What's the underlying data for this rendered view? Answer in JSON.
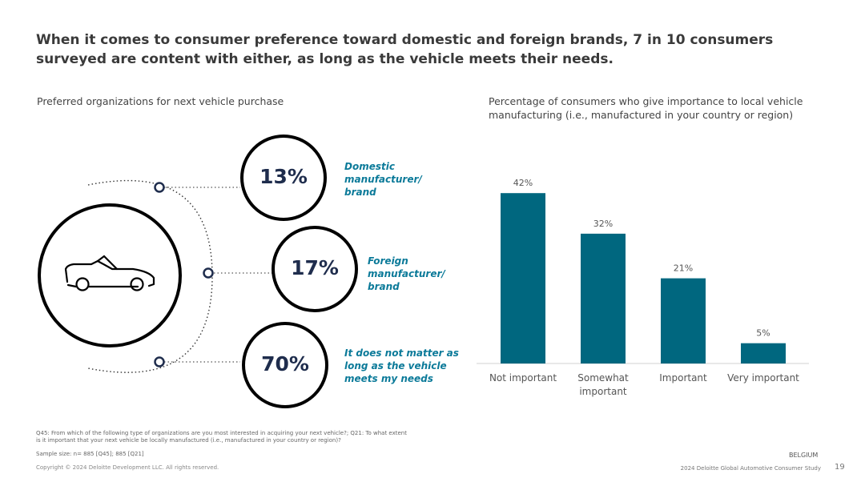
{
  "title": "When it comes to consumer preference toward domestic and foreign brands, 7 in 10 consumers surveyed are content with either, as long as the vehicle meets their needs.",
  "left_panel": {
    "subtitle": "Preferred organizations for next vehicle purchase",
    "icon": "car-convertible-icon",
    "options": [
      {
        "percent": "13%",
        "label": "Domestic manufacturer/ brand",
        "lines": [
          "Domestic",
          "manufacturer/",
          "brand"
        ]
      },
      {
        "percent": "17%",
        "label": "Foreign manufacturer/ brand",
        "lines": [
          "Foreign",
          "manufacturer/",
          "brand"
        ]
      },
      {
        "percent": "70%",
        "label": "It does not matter as long as the vehicle meets my needs",
        "lines": [
          "It does not matter as",
          "long as the vehicle",
          "meets my needs"
        ]
      }
    ]
  },
  "right_panel": {
    "subtitle": "Percentage of consumers who give importance to local vehicle manufacturing (i.e., manufactured in your country or region)"
  },
  "chart_data": {
    "type": "bar",
    "title": "Percentage of consumers who give importance to local vehicle manufacturing (i.e., manufactured in your country or region)",
    "categories": [
      "Not important",
      "Somewhat important",
      "Important",
      "Very important"
    ],
    "values": [
      42,
      32,
      21,
      5
    ],
    "value_labels": [
      "42%",
      "32%",
      "21%",
      "5%"
    ],
    "ylim": [
      0,
      45
    ],
    "grid": false,
    "bar_color": "#00677f"
  },
  "footer": {
    "note_line1": "Q45: From which of the following type of organizations are you most interested in acquiring your next vehicle?; Q21: To what extent",
    "note_line2": "is it important that your next vehicle be locally manufactured (i.e., manufactured in your country or region)?",
    "sample": "Sample size: n= 885 [Q45]; 885 [Q21]",
    "copyright": "Copyright © 2024 Deloitte Development LLC. All rights reserved.",
    "country": "BELGIUM",
    "study": "2024 Deloitte Global Automotive Consumer Study",
    "page": "19"
  },
  "colors": {
    "accent": "#0b7a99",
    "bar": "#00677f",
    "navy": "#1f2d4d",
    "title": "#3a3a3a"
  }
}
